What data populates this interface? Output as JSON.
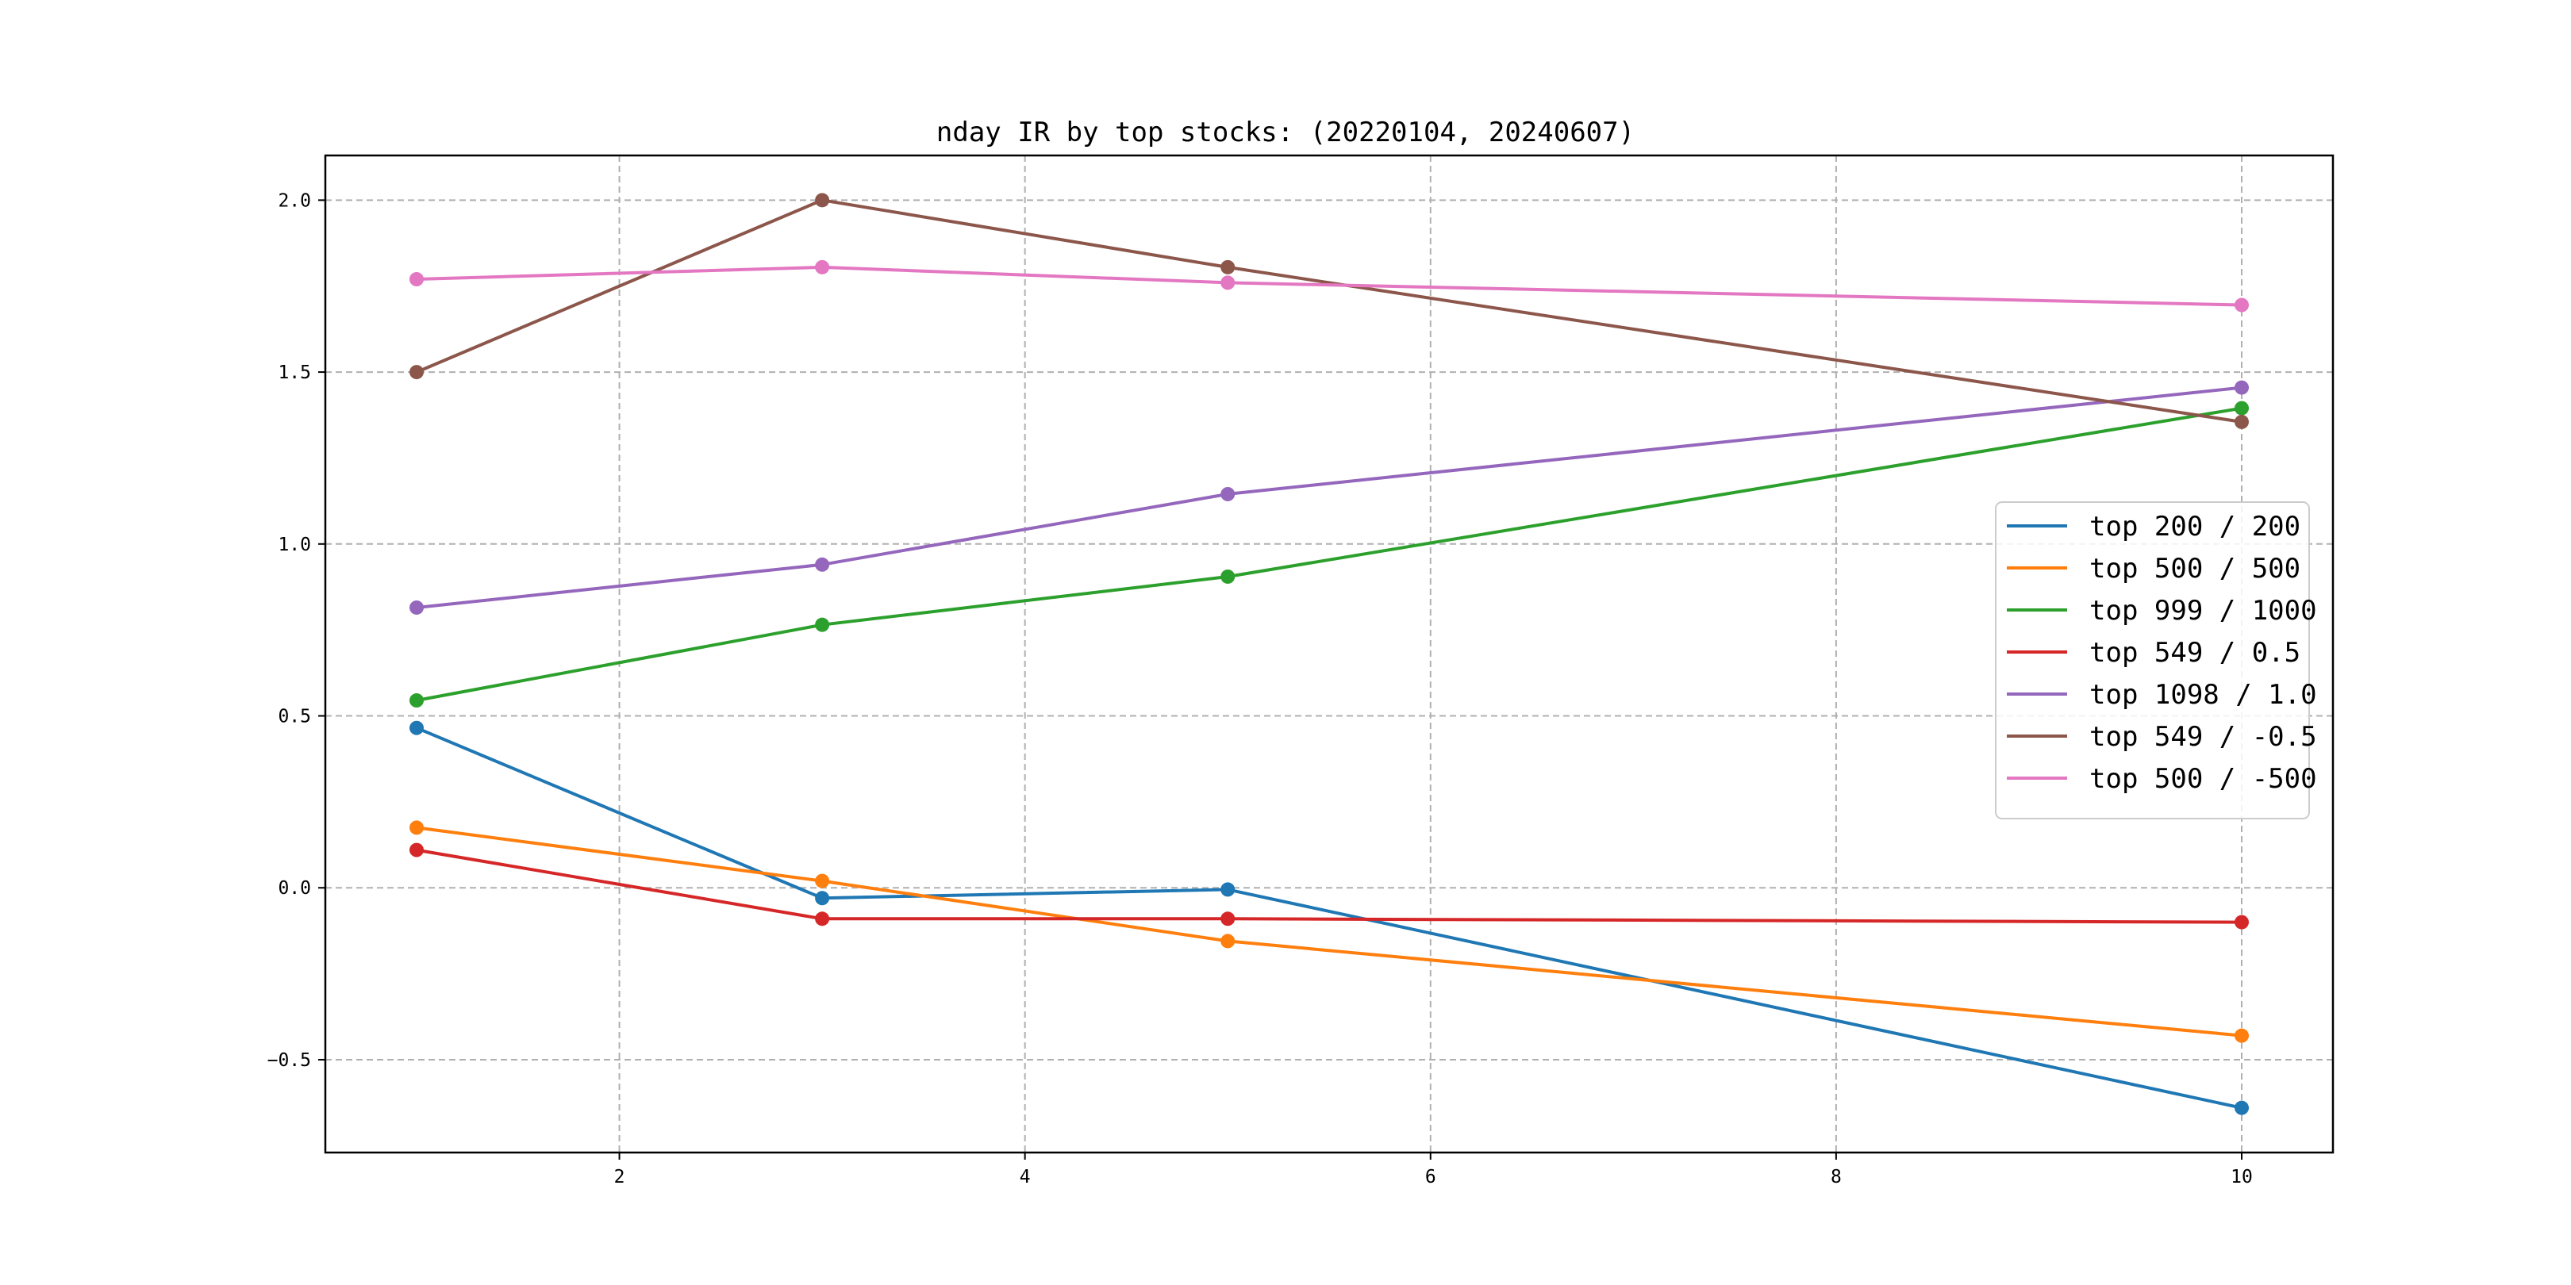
{
  "chart_data": {
    "type": "line",
    "title": "nday IR by top stocks: (20220104, 20240607)",
    "xlabel": "",
    "ylabel": "",
    "x": [
      1,
      3,
      5,
      10
    ],
    "xlim": [
      0.55,
      10.45
    ],
    "ylim": [
      -0.77,
      2.13
    ],
    "xticks": [
      2,
      4,
      6,
      8,
      10
    ],
    "yticks": [
      -0.5,
      0.0,
      0.5,
      1.0,
      1.5,
      2.0
    ],
    "xtick_labels": [
      "2",
      "4",
      "6",
      "8",
      "10"
    ],
    "ytick_labels": [
      "−0.5",
      "0.0",
      "0.5",
      "1.0",
      "1.5",
      "2.0"
    ],
    "grid": true,
    "legend_position": "center-right",
    "series": [
      {
        "name": "top 200 / 200",
        "color": "#1f77b4",
        "values": [
          0.465,
          -0.03,
          -0.005,
          -0.64
        ]
      },
      {
        "name": "top 500 / 500",
        "color": "#ff7f0e",
        "values": [
          0.175,
          0.02,
          -0.155,
          -0.43
        ]
      },
      {
        "name": "top 999 / 1000",
        "color": "#2ca02c",
        "values": [
          0.545,
          0.765,
          0.905,
          1.395
        ]
      },
      {
        "name": "top 549 / 0.5",
        "color": "#d62728",
        "values": [
          0.11,
          -0.09,
          -0.09,
          -0.1
        ]
      },
      {
        "name": "top 1098 / 1.0",
        "color": "#9467bd",
        "values": [
          0.815,
          0.94,
          1.145,
          1.455
        ]
      },
      {
        "name": "top 549 / -0.5",
        "color": "#8c564b",
        "values": [
          1.5,
          2.0,
          1.805,
          1.355
        ]
      },
      {
        "name": "top 500 / -500",
        "color": "#e377c2",
        "values": [
          1.77,
          1.805,
          1.76,
          1.695
        ]
      }
    ]
  }
}
